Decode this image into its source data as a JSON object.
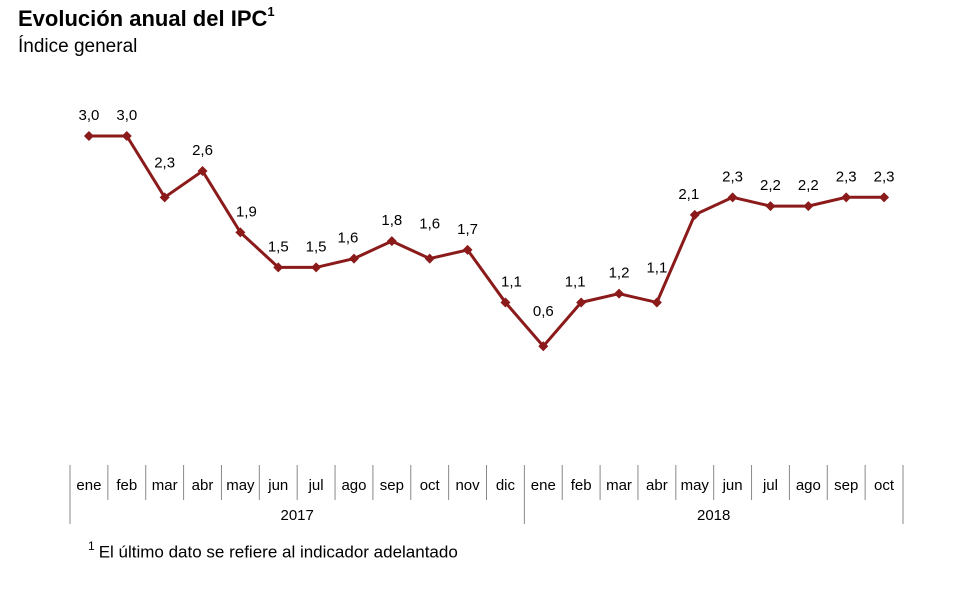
{
  "title": "Evolución anual del IPC",
  "title_sup": "1",
  "subtitle": "Índice general",
  "footnote": {
    "marker": "1",
    "text": "El último dato se refiere al indicador adelantado"
  },
  "colors": {
    "series": "#8B1A1A",
    "axis": "#888888"
  },
  "chart_data": {
    "type": "line",
    "title": "Evolución anual del IPC",
    "subtitle": "Índice general",
    "categories": [
      "ene",
      "feb",
      "mar",
      "abr",
      "may",
      "jun",
      "jul",
      "ago",
      "sep",
      "oct",
      "nov",
      "dic",
      "ene",
      "feb",
      "mar",
      "abr",
      "may",
      "jun",
      "jul",
      "ago",
      "sep",
      "oct"
    ],
    "years": [
      {
        "label": "2017",
        "count": 12
      },
      {
        "label": "2018",
        "count": 10
      }
    ],
    "series": [
      {
        "values": [
          3.0,
          3.0,
          2.3,
          2.6,
          1.9,
          1.5,
          1.5,
          1.6,
          1.8,
          1.6,
          1.7,
          1.1,
          0.6,
          1.1,
          1.2,
          1.1,
          2.1,
          2.3,
          2.2,
          2.2,
          2.3,
          2.3
        ],
        "labels": [
          "3,0",
          "3,0",
          "2,3",
          "2,6",
          "1,9",
          "1,5",
          "1,5",
          "1,6",
          "1,8",
          "1,6",
          "1,7",
          "1,1",
          "0,6",
          "1,1",
          "1,2",
          "1,1",
          "2,1",
          "2,3",
          "2,2",
          "2,2",
          "2,3",
          "2,3"
        ]
      }
    ],
    "marker": "diamond",
    "grid": false,
    "legend": "none"
  }
}
